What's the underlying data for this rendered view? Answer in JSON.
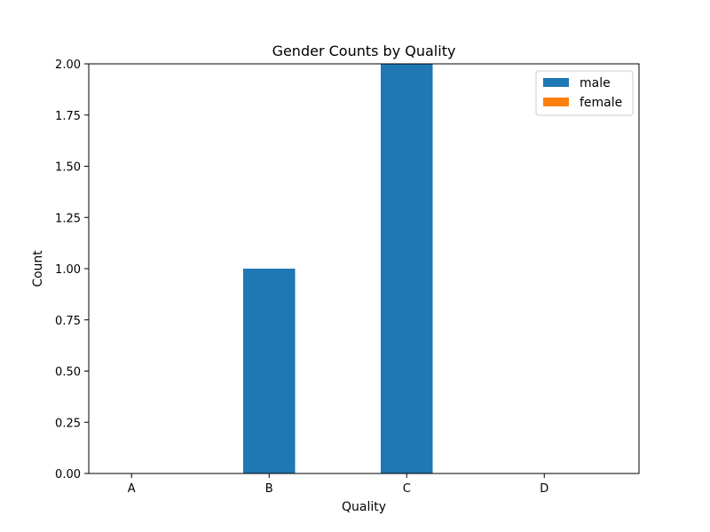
{
  "chart_data": {
    "type": "bar",
    "title": "Gender Counts by Quality",
    "xlabel": "Quality",
    "ylabel": "Count",
    "categories": [
      "A",
      "B",
      "C",
      "D"
    ],
    "series": [
      {
        "name": "male",
        "values": [
          0,
          1,
          2,
          0
        ],
        "color": "#1f77b4"
      },
      {
        "name": "female",
        "values": [
          0,
          0,
          0,
          0
        ],
        "color": "#ff7f0e"
      }
    ],
    "ylim": [
      0,
      2
    ],
    "yticks": [
      0,
      0.25,
      0.5,
      0.75,
      1.0,
      1.25,
      1.5,
      1.75,
      2.0
    ],
    "ytick_labels": [
      "0.00",
      "0.25",
      "0.50",
      "0.75",
      "1.00",
      "1.25",
      "1.50",
      "1.75",
      "2.00"
    ],
    "grid": false,
    "legend_position": "top-right"
  }
}
